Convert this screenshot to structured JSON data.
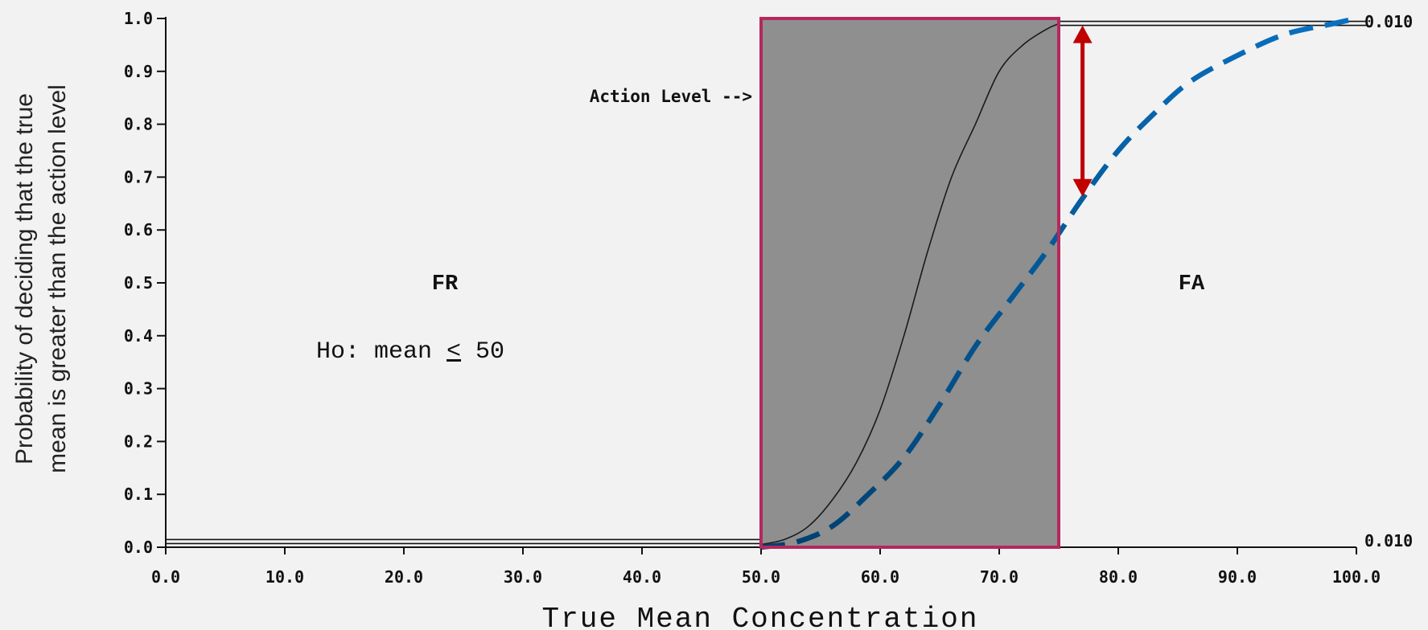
{
  "chart_data": {
    "type": "line",
    "title": "",
    "xlabel": "True Mean Concentration",
    "ylabel_lines": [
      "Probability of deciding that the true",
      "mean is greater than the action level"
    ],
    "xlim": [
      0,
      100
    ],
    "ylim": [
      0,
      1
    ],
    "x_ticks": [
      "0.0",
      "10.0",
      "20.0",
      "30.0",
      "40.0",
      "50.0",
      "60.0",
      "70.0",
      "80.0",
      "90.0",
      "100.0"
    ],
    "y_ticks": [
      "0.0",
      "0.1",
      "0.2",
      "0.3",
      "0.4",
      "0.5",
      "0.6",
      "0.7",
      "0.8",
      "0.9",
      "1.0"
    ],
    "grid": false,
    "gray_region": {
      "x0": 50,
      "x1": 75,
      "fill": "#8f8f8f",
      "border": "#b5285e"
    },
    "series": [
      {
        "style": "solid-thin",
        "color": "#1a1a1a",
        "x": [
          50,
          52,
          54,
          56,
          58,
          60,
          62,
          64,
          66,
          68,
          70,
          72,
          74,
          75
        ],
        "y": [
          0.005,
          0.015,
          0.04,
          0.09,
          0.16,
          0.26,
          0.4,
          0.56,
          0.7,
          0.8,
          0.9,
          0.95,
          0.98,
          0.99
        ]
      },
      {
        "style": "dashed-thick",
        "color_start": "#003f6e",
        "color_end": "#0a72c2",
        "x": [
          50,
          53,
          56,
          59,
          62,
          65,
          68,
          71,
          74,
          77,
          80,
          83,
          86,
          90,
          94,
          98,
          100
        ],
        "y": [
          0.0,
          0.01,
          0.04,
          0.1,
          0.17,
          0.27,
          0.38,
          0.47,
          0.56,
          0.66,
          0.75,
          0.82,
          0.88,
          0.93,
          0.97,
          0.99,
          1.0
        ]
      }
    ],
    "decision_lines": [
      {
        "x0": 0,
        "x1": 50,
        "y": 0.01
      },
      {
        "x0": 75,
        "x1": 100,
        "y": 0.99
      }
    ],
    "arrow": {
      "x": 77,
      "y_top": 0.99,
      "y_bottom": 0.66,
      "color": "#c00000"
    },
    "annotations": {
      "action_level": "Action Level -->",
      "fr": "FR",
      "fa": "FA",
      "hypothesis_prefix": "Ho: mean ",
      "hypothesis_symbol": "<",
      "hypothesis_suffix": " 50",
      "right_top": "0.010",
      "right_bottom": "0.010"
    }
  }
}
